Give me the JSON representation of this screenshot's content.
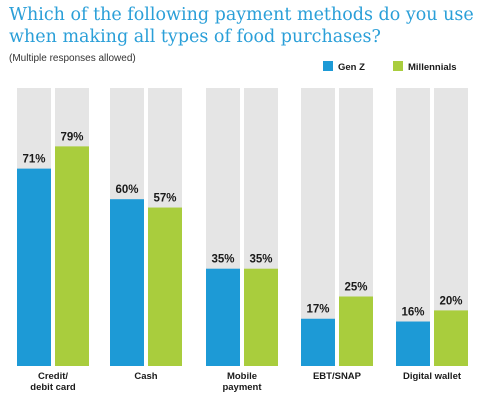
{
  "title": "Which of the following payment methods do you use when making all types of food purchases?",
  "subtitle": "(Multiple responses allowed)",
  "colors": {
    "genz": "#1d9ad6",
    "millennials": "#a9cd3d",
    "track": "#e5e5e5"
  },
  "chart_data": {
    "type": "bar",
    "categories": [
      [
        "Credit/",
        "debit card"
      ],
      [
        "Cash"
      ],
      [
        "Mobile",
        "payment"
      ],
      [
        "EBT/SNAP"
      ],
      [
        "Digital wallet"
      ]
    ],
    "series": [
      {
        "name": "Gen Z",
        "values": [
          71,
          60,
          35,
          17,
          16
        ],
        "labels": [
          "71%",
          "60%",
          "35%",
          "17%",
          "16%"
        ]
      },
      {
        "name": "Millennials",
        "values": [
          79,
          57,
          35,
          25,
          20
        ],
        "labels": [
          "79%",
          "57%",
          "35%",
          "25%",
          "20%"
        ]
      }
    ],
    "ylim": [
      0,
      100
    ],
    "legend": "top-right",
    "grid": false
  }
}
